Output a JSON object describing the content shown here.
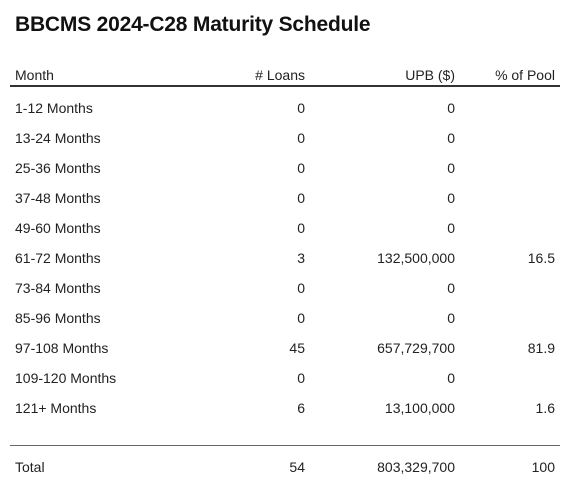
{
  "title": "BBCMS 2024-C28 Maturity Schedule",
  "columns": [
    "Month",
    "# Loans",
    "UPB ($)",
    "% of Pool"
  ],
  "rows": [
    {
      "month": "1-12 Months",
      "loans": "0",
      "upb": "0",
      "pct": ""
    },
    {
      "month": "13-24 Months",
      "loans": "0",
      "upb": "0",
      "pct": ""
    },
    {
      "month": "25-36 Months",
      "loans": "0",
      "upb": "0",
      "pct": ""
    },
    {
      "month": "37-48 Months",
      "loans": "0",
      "upb": "0",
      "pct": ""
    },
    {
      "month": "49-60 Months",
      "loans": "0",
      "upb": "0",
      "pct": ""
    },
    {
      "month": "61-72 Months",
      "loans": "3",
      "upb": "132,500,000",
      "pct": "16.5"
    },
    {
      "month": "73-84 Months",
      "loans": "0",
      "upb": "0",
      "pct": ""
    },
    {
      "month": "85-96 Months",
      "loans": "0",
      "upb": "0",
      "pct": ""
    },
    {
      "month": "97-108 Months",
      "loans": "45",
      "upb": "657,729,700",
      "pct": "81.9"
    },
    {
      "month": "109-120 Months",
      "loans": "0",
      "upb": "0",
      "pct": ""
    },
    {
      "month": "121+ Months",
      "loans": "6",
      "upb": "13,100,000",
      "pct": "1.6"
    }
  ],
  "total": {
    "month": "Total",
    "loans": "54",
    "upb": "803,329,700",
    "pct": "100"
  }
}
